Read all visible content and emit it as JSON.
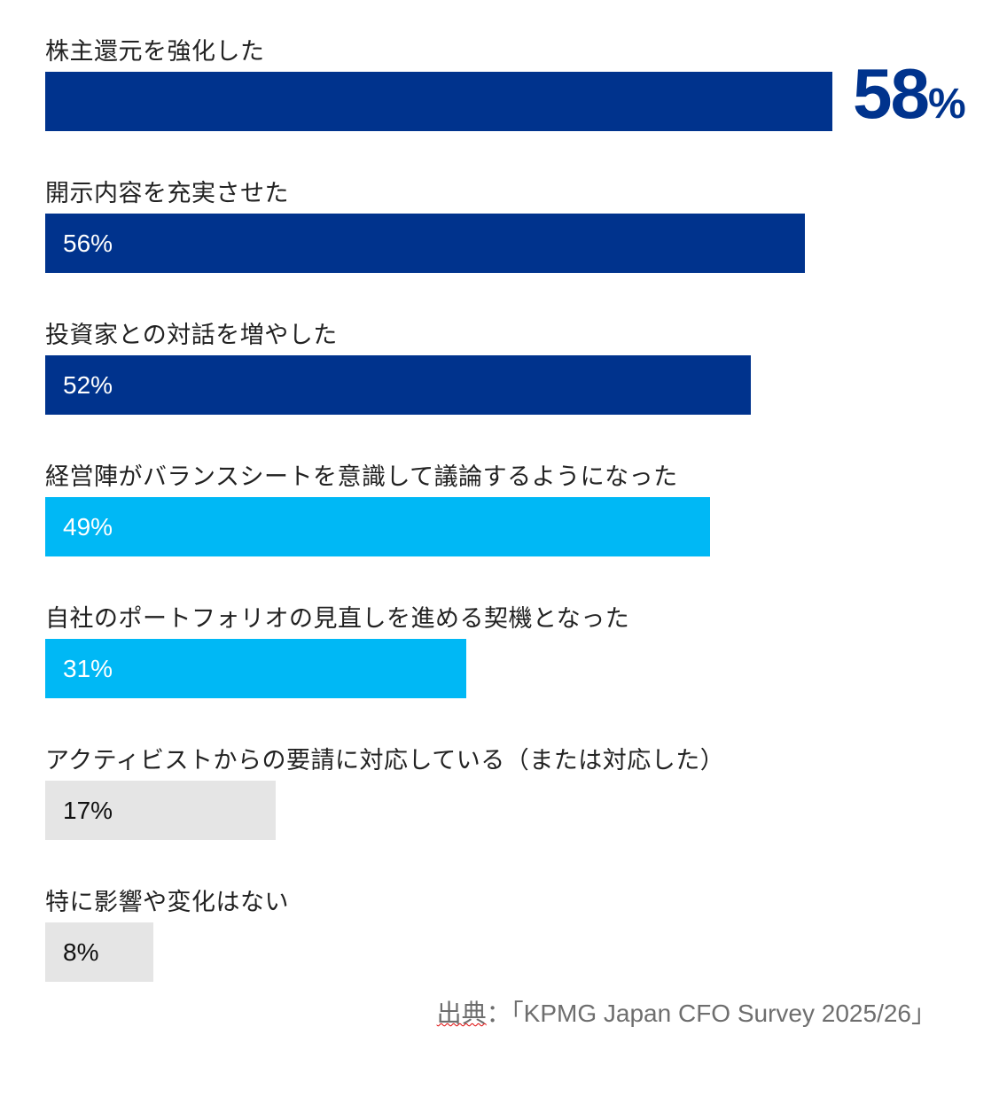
{
  "chart_data": {
    "type": "bar",
    "orientation": "horizontal",
    "categories": [
      "株主還元を強化した",
      "開示内容を充実させた",
      "投資家との対話を増やした",
      "経営陣がバランスシートを意識して議論するようになった",
      "自社のポートフォリオの見直しを進める契機となった",
      "アクティビストからの要請に対応している（または対応した）",
      "特に影響や変化はない"
    ],
    "values": [
      58,
      56,
      52,
      49,
      31,
      17,
      8
    ],
    "value_labels": [
      "58",
      "56%",
      "52%",
      "49%",
      "31%",
      "17%",
      "8%"
    ],
    "highlight_unit": "%",
    "bar_colors": [
      "#00338D",
      "#00338D",
      "#00338D",
      "#00B8F5",
      "#00B8F5",
      "#E5E5E5",
      "#E5E5E5"
    ],
    "label_colors": [
      "#FFFFFF",
      "#FFFFFF",
      "#FFFFFF",
      "#FFFFFF",
      "#FFFFFF",
      "#111111",
      "#111111"
    ],
    "highlight_color": "#00338D",
    "xlim": [
      0,
      58
    ],
    "grid": false
  },
  "source": {
    "prefix": "出典",
    "text": "：「KPMG Japan CFO Survey 2025/26」"
  }
}
